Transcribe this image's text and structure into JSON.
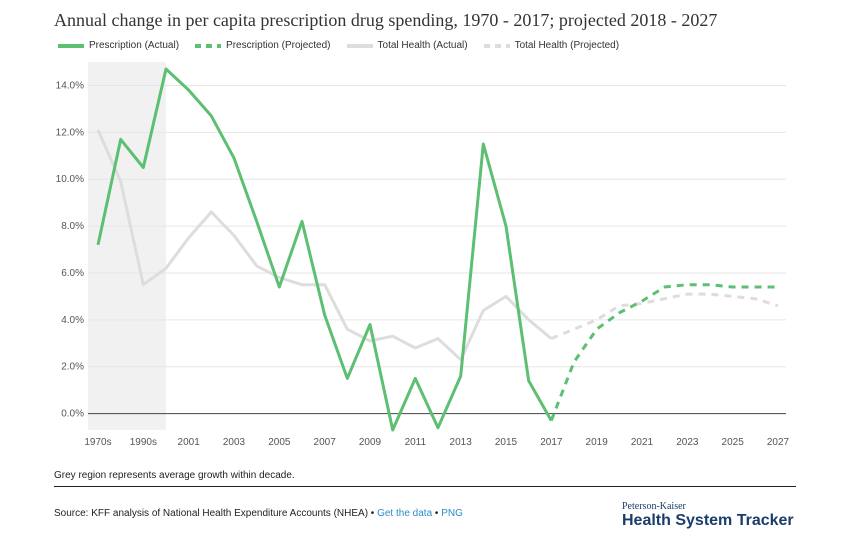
{
  "title": "Annual change in per capita prescription drug spending, 1970 - 2017; projected 2018 - 2027",
  "legend": [
    {
      "label": "Prescription (Actual)",
      "color": "#5cbf72",
      "style": "solid"
    },
    {
      "label": "Prescription (Projected)",
      "color": "#5cbf72",
      "style": "dashed"
    },
    {
      "label": "Total Health (Actual)",
      "color": "#dddddd",
      "style": "solid"
    },
    {
      "label": "Total Health (Projected)",
      "color": "#dddddd",
      "style": "dashed"
    }
  ],
  "chart_data": {
    "type": "line",
    "title": "Annual change in per capita prescription drug spending, 1970 - 2017; projected 2018 - 2027",
    "xlabel": "",
    "ylabel": "",
    "x": [
      "1970s",
      "1980s",
      "1990s",
      "2000",
      "2001",
      "2002",
      "2003",
      "2004",
      "2005",
      "2006",
      "2007",
      "2008",
      "2009",
      "2010",
      "2011",
      "2012",
      "2013",
      "2014",
      "2015",
      "2016",
      "2017",
      "2018",
      "2019",
      "2020",
      "2021",
      "2022",
      "2023",
      "2024",
      "2025",
      "2026",
      "2027"
    ],
    "x_tick_labels": [
      "1970s",
      "1990s",
      "2001",
      "2003",
      "2005",
      "2007",
      "2009",
      "2011",
      "2013",
      "2015",
      "2017",
      "2019",
      "2021",
      "2023",
      "2025",
      "2027"
    ],
    "ylim": [
      -0.7,
      15.0
    ],
    "y_ticks": [
      0,
      2,
      4,
      6,
      8,
      10,
      12,
      14
    ],
    "y_tick_labels": [
      "0.0%",
      "2.0%",
      "4.0%",
      "6.0%",
      "8.0%",
      "10.0%",
      "12.0%",
      "14.0%"
    ],
    "shaded_region": {
      "from": "1970s",
      "to": "2000",
      "label": "Grey region represents average growth within decade."
    },
    "series": [
      {
        "name": "Prescription (Actual)",
        "color": "#5cbf72",
        "dashed": false,
        "width": 3,
        "values": [
          7.2,
          11.7,
          10.5,
          14.7,
          13.8,
          12.7,
          10.9,
          8.2,
          5.4,
          8.2,
          4.2,
          1.5,
          3.8,
          -0.7,
          1.5,
          -0.6,
          1.6,
          11.5,
          8.0,
          1.4,
          -0.3,
          null,
          null,
          null,
          null,
          null,
          null,
          null,
          null,
          null,
          null
        ]
      },
      {
        "name": "Prescription (Projected)",
        "color": "#5cbf72",
        "dashed": true,
        "width": 3,
        "values": [
          null,
          null,
          null,
          null,
          null,
          null,
          null,
          null,
          null,
          null,
          null,
          null,
          null,
          null,
          null,
          null,
          null,
          null,
          null,
          null,
          -0.3,
          2.2,
          3.6,
          4.3,
          4.8,
          5.4,
          5.5,
          5.5,
          5.4,
          5.4,
          5.4
        ]
      },
      {
        "name": "Total Health (Actual)",
        "color": "#dddddd",
        "dashed": false,
        "width": 3,
        "values": [
          12.1,
          9.9,
          5.5,
          6.2,
          7.5,
          8.6,
          7.6,
          6.3,
          5.8,
          5.5,
          5.5,
          3.6,
          3.1,
          3.3,
          2.8,
          3.2,
          2.3,
          4.4,
          5.0,
          4.0,
          3.2,
          null,
          null,
          null,
          null,
          null,
          null,
          null,
          null,
          null,
          null
        ]
      },
      {
        "name": "Total Health (Projected)",
        "color": "#dddddd",
        "dashed": true,
        "width": 3,
        "values": [
          null,
          null,
          null,
          null,
          null,
          null,
          null,
          null,
          null,
          null,
          null,
          null,
          null,
          null,
          null,
          null,
          null,
          null,
          null,
          null,
          3.2,
          3.6,
          4.0,
          4.6,
          4.7,
          4.9,
          5.1,
          5.1,
          5.0,
          4.9,
          4.6
        ]
      }
    ]
  },
  "footer": {
    "note": "Grey region represents average growth within decade.",
    "source_prefix": "Source: KFF analysis of National Health Expenditure Accounts (NHEA) • ",
    "get_data": "Get the data",
    "sep": " • ",
    "png": "PNG",
    "brand_top": "Peterson-Kaiser",
    "brand_main": "Health System Tracker"
  }
}
